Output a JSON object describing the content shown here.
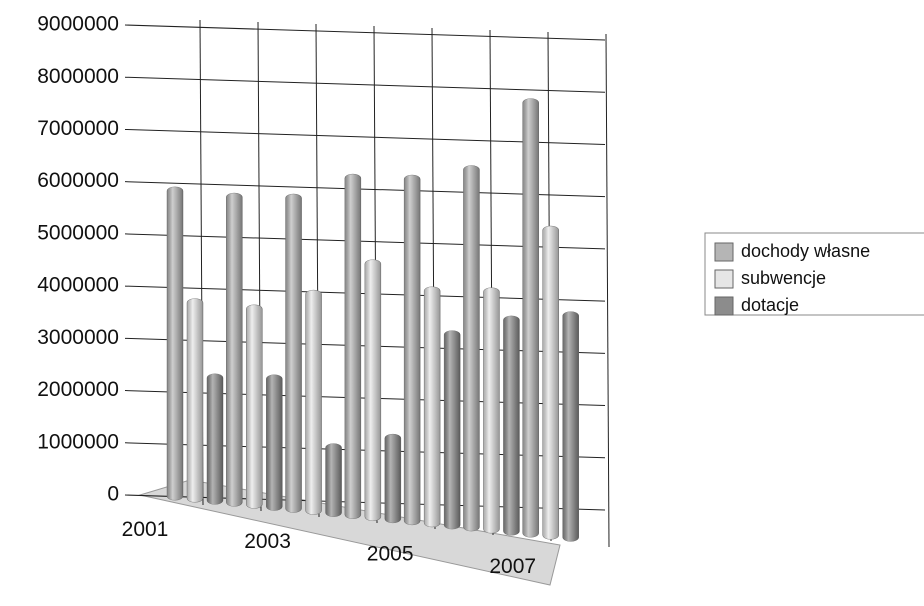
{
  "chart_data": {
    "type": "bar",
    "categories": [
      "2001",
      null,
      "2003",
      null,
      "2005",
      null,
      "2007"
    ],
    "series": [
      {
        "name": "dochody własne",
        "color": "#b5b5b5",
        "values": [
          6000000,
          6000000,
          6100000,
          6600000,
          6700000,
          7000000,
          8400000
        ]
      },
      {
        "name": "subwencje",
        "color": "#e6e6e6",
        "values": [
          3900000,
          3900000,
          4300000,
          5000000,
          4600000,
          4700000,
          6000000
        ]
      },
      {
        "name": "dotacje",
        "color": "#8c8c8c",
        "values": [
          2500000,
          2600000,
          1400000,
          1700000,
          3800000,
          4200000,
          4400000
        ]
      }
    ],
    "ylim": [
      0,
      9000000
    ],
    "yticks": [
      0,
      1000000,
      2000000,
      3000000,
      4000000,
      5000000,
      6000000,
      7000000,
      8000000,
      9000000
    ],
    "grid": true,
    "legend": "right"
  }
}
